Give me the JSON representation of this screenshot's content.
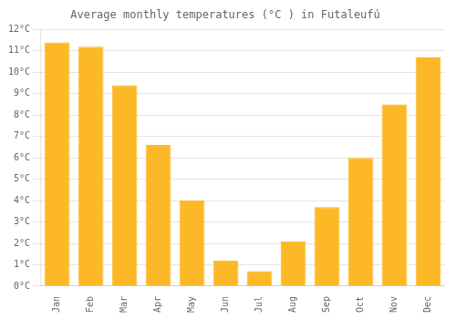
{
  "chart_data": {
    "type": "bar",
    "title": "Average monthly temperatures (°C ) in Futaleufú",
    "categories": [
      "Jan",
      "Feb",
      "Mar",
      "Apr",
      "May",
      "Jun",
      "Jul",
      "Aug",
      "Sep",
      "Oct",
      "Nov",
      "Dec"
    ],
    "values": [
      11.4,
      11.2,
      9.4,
      6.6,
      4.0,
      1.2,
      0.7,
      2.1,
      3.7,
      6.0,
      8.5,
      10.7
    ],
    "color": "#FDB827",
    "ylim": [
      0,
      12
    ],
    "yticks": [
      {
        "value": 0,
        "label": "0°C"
      },
      {
        "value": 1,
        "label": "1°C"
      },
      {
        "value": 2,
        "label": "2°C"
      },
      {
        "value": 3,
        "label": "3°C"
      },
      {
        "value": 4,
        "label": "4°C"
      },
      {
        "value": 5,
        "label": "5°C"
      },
      {
        "value": 6,
        "label": "6°C"
      },
      {
        "value": 7,
        "label": "7°C"
      },
      {
        "value": 8,
        "label": "8°C"
      },
      {
        "value": 9,
        "label": "9°C"
      },
      {
        "value": 10,
        "label": "10°C"
      },
      {
        "value": 11,
        "label": "11°C"
      },
      {
        "value": 12,
        "label": "12°C"
      }
    ],
    "grid": true
  }
}
